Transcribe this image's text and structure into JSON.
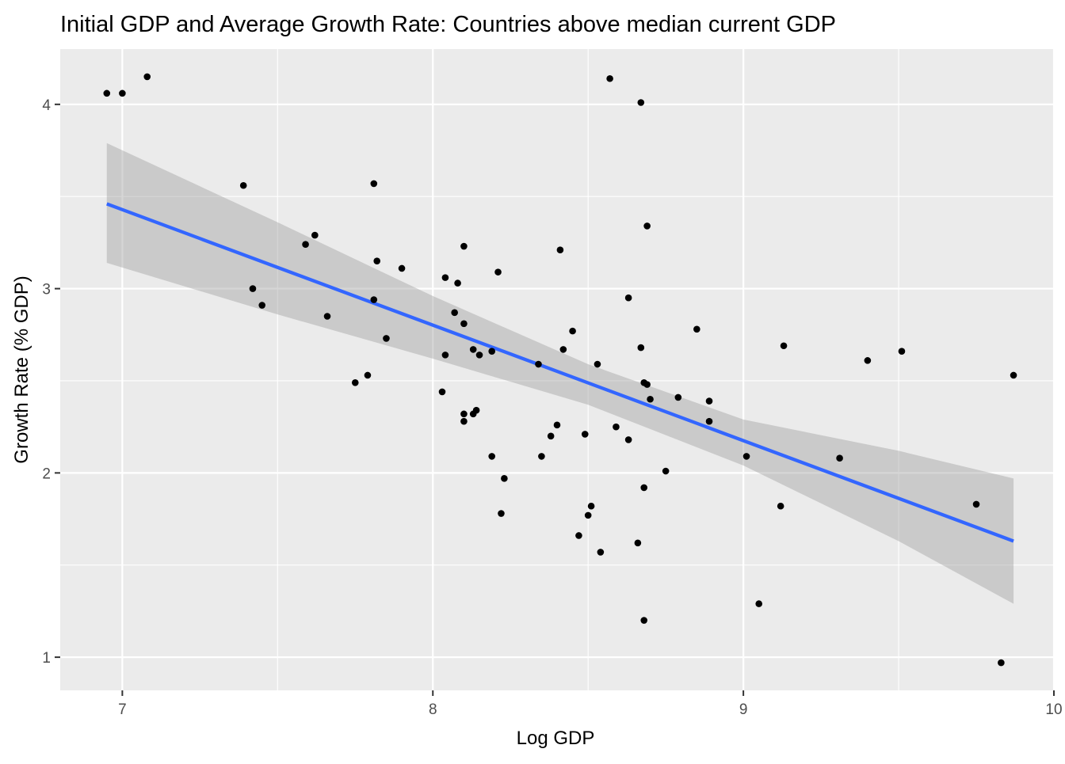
{
  "chart_data": {
    "type": "scatter",
    "title": "Initial GDP and Average Growth Rate: Countries above median current GDP",
    "xlabel": "Log GDP",
    "ylabel": "Growth Rate (% GDP)",
    "xlim": [
      6.8,
      10.0
    ],
    "ylim": [
      0.82,
      4.3
    ],
    "x_ticks": [
      7,
      8,
      9,
      10
    ],
    "x_tick_labels": [
      "7",
      "8",
      "9",
      "10"
    ],
    "y_ticks": [
      1,
      2,
      3,
      4
    ],
    "y_tick_labels": [
      "1",
      "2",
      "3",
      "4"
    ],
    "grid": true,
    "colors": {
      "panel": "#ebebeb",
      "grid": "#ffffff",
      "point": "#000000",
      "fit_line": "#3366ff",
      "ribbon": "#999999"
    },
    "points": [
      {
        "x": 6.95,
        "y": 4.06
      },
      {
        "x": 7.0,
        "y": 4.06
      },
      {
        "x": 7.08,
        "y": 4.15
      },
      {
        "x": 7.39,
        "y": 3.56
      },
      {
        "x": 7.42,
        "y": 3.0
      },
      {
        "x": 7.45,
        "y": 2.91
      },
      {
        "x": 7.59,
        "y": 3.24
      },
      {
        "x": 7.62,
        "y": 3.29
      },
      {
        "x": 7.66,
        "y": 2.85
      },
      {
        "x": 7.75,
        "y": 2.49
      },
      {
        "x": 7.79,
        "y": 2.53
      },
      {
        "x": 7.81,
        "y": 3.57
      },
      {
        "x": 7.81,
        "y": 2.94
      },
      {
        "x": 7.82,
        "y": 3.15
      },
      {
        "x": 7.85,
        "y": 2.73
      },
      {
        "x": 7.9,
        "y": 3.11
      },
      {
        "x": 8.03,
        "y": 2.44
      },
      {
        "x": 8.04,
        "y": 3.06
      },
      {
        "x": 8.04,
        "y": 2.64
      },
      {
        "x": 8.07,
        "y": 2.87
      },
      {
        "x": 8.08,
        "y": 3.03
      },
      {
        "x": 8.1,
        "y": 3.23
      },
      {
        "x": 8.1,
        "y": 2.81
      },
      {
        "x": 8.1,
        "y": 2.32
      },
      {
        "x": 8.1,
        "y": 2.28
      },
      {
        "x": 8.13,
        "y": 2.32
      },
      {
        "x": 8.13,
        "y": 2.67
      },
      {
        "x": 8.14,
        "y": 2.34
      },
      {
        "x": 8.15,
        "y": 2.64
      },
      {
        "x": 8.19,
        "y": 2.66
      },
      {
        "x": 8.19,
        "y": 2.09
      },
      {
        "x": 8.21,
        "y": 3.09
      },
      {
        "x": 8.22,
        "y": 1.78
      },
      {
        "x": 8.23,
        "y": 1.97
      },
      {
        "x": 8.34,
        "y": 2.59
      },
      {
        "x": 8.35,
        "y": 2.09
      },
      {
        "x": 8.38,
        "y": 2.2
      },
      {
        "x": 8.4,
        "y": 2.26
      },
      {
        "x": 8.41,
        "y": 3.21
      },
      {
        "x": 8.42,
        "y": 2.67
      },
      {
        "x": 8.45,
        "y": 2.77
      },
      {
        "x": 8.47,
        "y": 1.66
      },
      {
        "x": 8.49,
        "y": 2.21
      },
      {
        "x": 8.5,
        "y": 1.77
      },
      {
        "x": 8.51,
        "y": 1.82
      },
      {
        "x": 8.53,
        "y": 2.59
      },
      {
        "x": 8.54,
        "y": 1.57
      },
      {
        "x": 8.57,
        "y": 4.14
      },
      {
        "x": 8.59,
        "y": 2.25
      },
      {
        "x": 8.63,
        "y": 2.95
      },
      {
        "x": 8.63,
        "y": 2.18
      },
      {
        "x": 8.66,
        "y": 1.62
      },
      {
        "x": 8.67,
        "y": 4.01
      },
      {
        "x": 8.67,
        "y": 2.68
      },
      {
        "x": 8.68,
        "y": 1.92
      },
      {
        "x": 8.68,
        "y": 2.49
      },
      {
        "x": 8.69,
        "y": 2.48
      },
      {
        "x": 8.68,
        "y": 1.2
      },
      {
        "x": 8.69,
        "y": 3.34
      },
      {
        "x": 8.7,
        "y": 2.4
      },
      {
        "x": 8.75,
        "y": 2.01
      },
      {
        "x": 8.79,
        "y": 2.41
      },
      {
        "x": 8.85,
        "y": 2.78
      },
      {
        "x": 8.89,
        "y": 2.39
      },
      {
        "x": 8.89,
        "y": 2.28
      },
      {
        "x": 9.01,
        "y": 2.09
      },
      {
        "x": 9.05,
        "y": 1.29
      },
      {
        "x": 9.12,
        "y": 1.82
      },
      {
        "x": 9.13,
        "y": 2.69
      },
      {
        "x": 9.31,
        "y": 2.08
      },
      {
        "x": 9.4,
        "y": 2.61
      },
      {
        "x": 9.51,
        "y": 2.66
      },
      {
        "x": 9.75,
        "y": 1.83
      },
      {
        "x": 9.83,
        "y": 0.97
      },
      {
        "x": 9.87,
        "y": 2.53
      }
    ],
    "fit_line": {
      "x": [
        6.95,
        9.87
      ],
      "y": [
        3.46,
        1.63
      ]
    },
    "ribbon": {
      "x": [
        6.95,
        7.5,
        8.0,
        8.5,
        9.0,
        9.5,
        9.87
      ],
      "lower": [
        3.14,
        2.86,
        2.62,
        2.37,
        2.04,
        1.63,
        1.29
      ],
      "upper": [
        3.79,
        3.36,
        2.96,
        2.59,
        2.29,
        2.12,
        1.97
      ]
    }
  }
}
